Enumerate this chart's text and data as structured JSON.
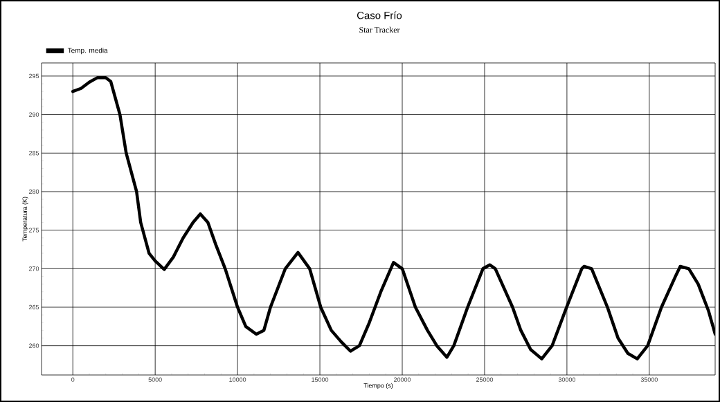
{
  "chart_data": {
    "type": "line",
    "title": "Caso Frío",
    "subtitle": "Star Tracker",
    "xlabel": "Tiempo (s)",
    "ylabel": "Temperatura (K)",
    "x": [
      0,
      500,
      1000,
      1500,
      2000,
      2300,
      2860,
      3240,
      3870,
      4120,
      4630,
      5000,
      5550,
      6100,
      6700,
      7300,
      7740,
      8200,
      8700,
      9250,
      10000,
      10500,
      11140,
      11600,
      12000,
      12900,
      13670,
      14380,
      15050,
      15690,
      16300,
      16860,
      17400,
      18000,
      18700,
      19470,
      20000,
      20800,
      21530,
      22100,
      22710,
      23130,
      23970,
      24900,
      25320,
      25650,
      26700,
      27200,
      27800,
      28470,
      29100,
      29980,
      30900,
      31040,
      31500,
      32460,
      33100,
      33700,
      34270,
      34900,
      35740,
      36590,
      36880,
      37400,
      37970,
      38600,
      39000
    ],
    "series": [
      {
        "name": "Temp. media",
        "color": "#000000",
        "values": [
          293.0,
          293.4,
          294.2,
          294.8,
          294.8,
          294.3,
          290,
          285,
          280,
          276,
          272,
          271,
          269.9,
          271.5,
          274,
          276,
          277.1,
          276,
          273,
          270,
          265,
          262.5,
          261.5,
          262,
          265,
          270,
          272.1,
          270,
          265,
          262,
          260.5,
          259.3,
          260,
          263,
          267,
          270.8,
          270,
          265,
          262,
          260,
          258.5,
          260,
          265,
          270,
          270.5,
          270,
          265,
          262,
          259.5,
          258.3,
          260,
          265,
          270,
          270.3,
          270,
          265,
          261,
          259,
          258.3,
          260,
          265,
          269,
          270.3,
          270,
          268,
          264.5,
          261.5
        ]
      }
    ],
    "xlim": [
      -1900,
      39000
    ],
    "ylim": [
      256.2,
      296.7
    ],
    "xticks": [
      0,
      5000,
      10000,
      15000,
      20000,
      25000,
      30000,
      35000
    ],
    "yticks": [
      260,
      265,
      270,
      275,
      280,
      285,
      290,
      295
    ],
    "grid": true,
    "legend": "top left",
    "marker": "none",
    "line_style": "solid"
  }
}
